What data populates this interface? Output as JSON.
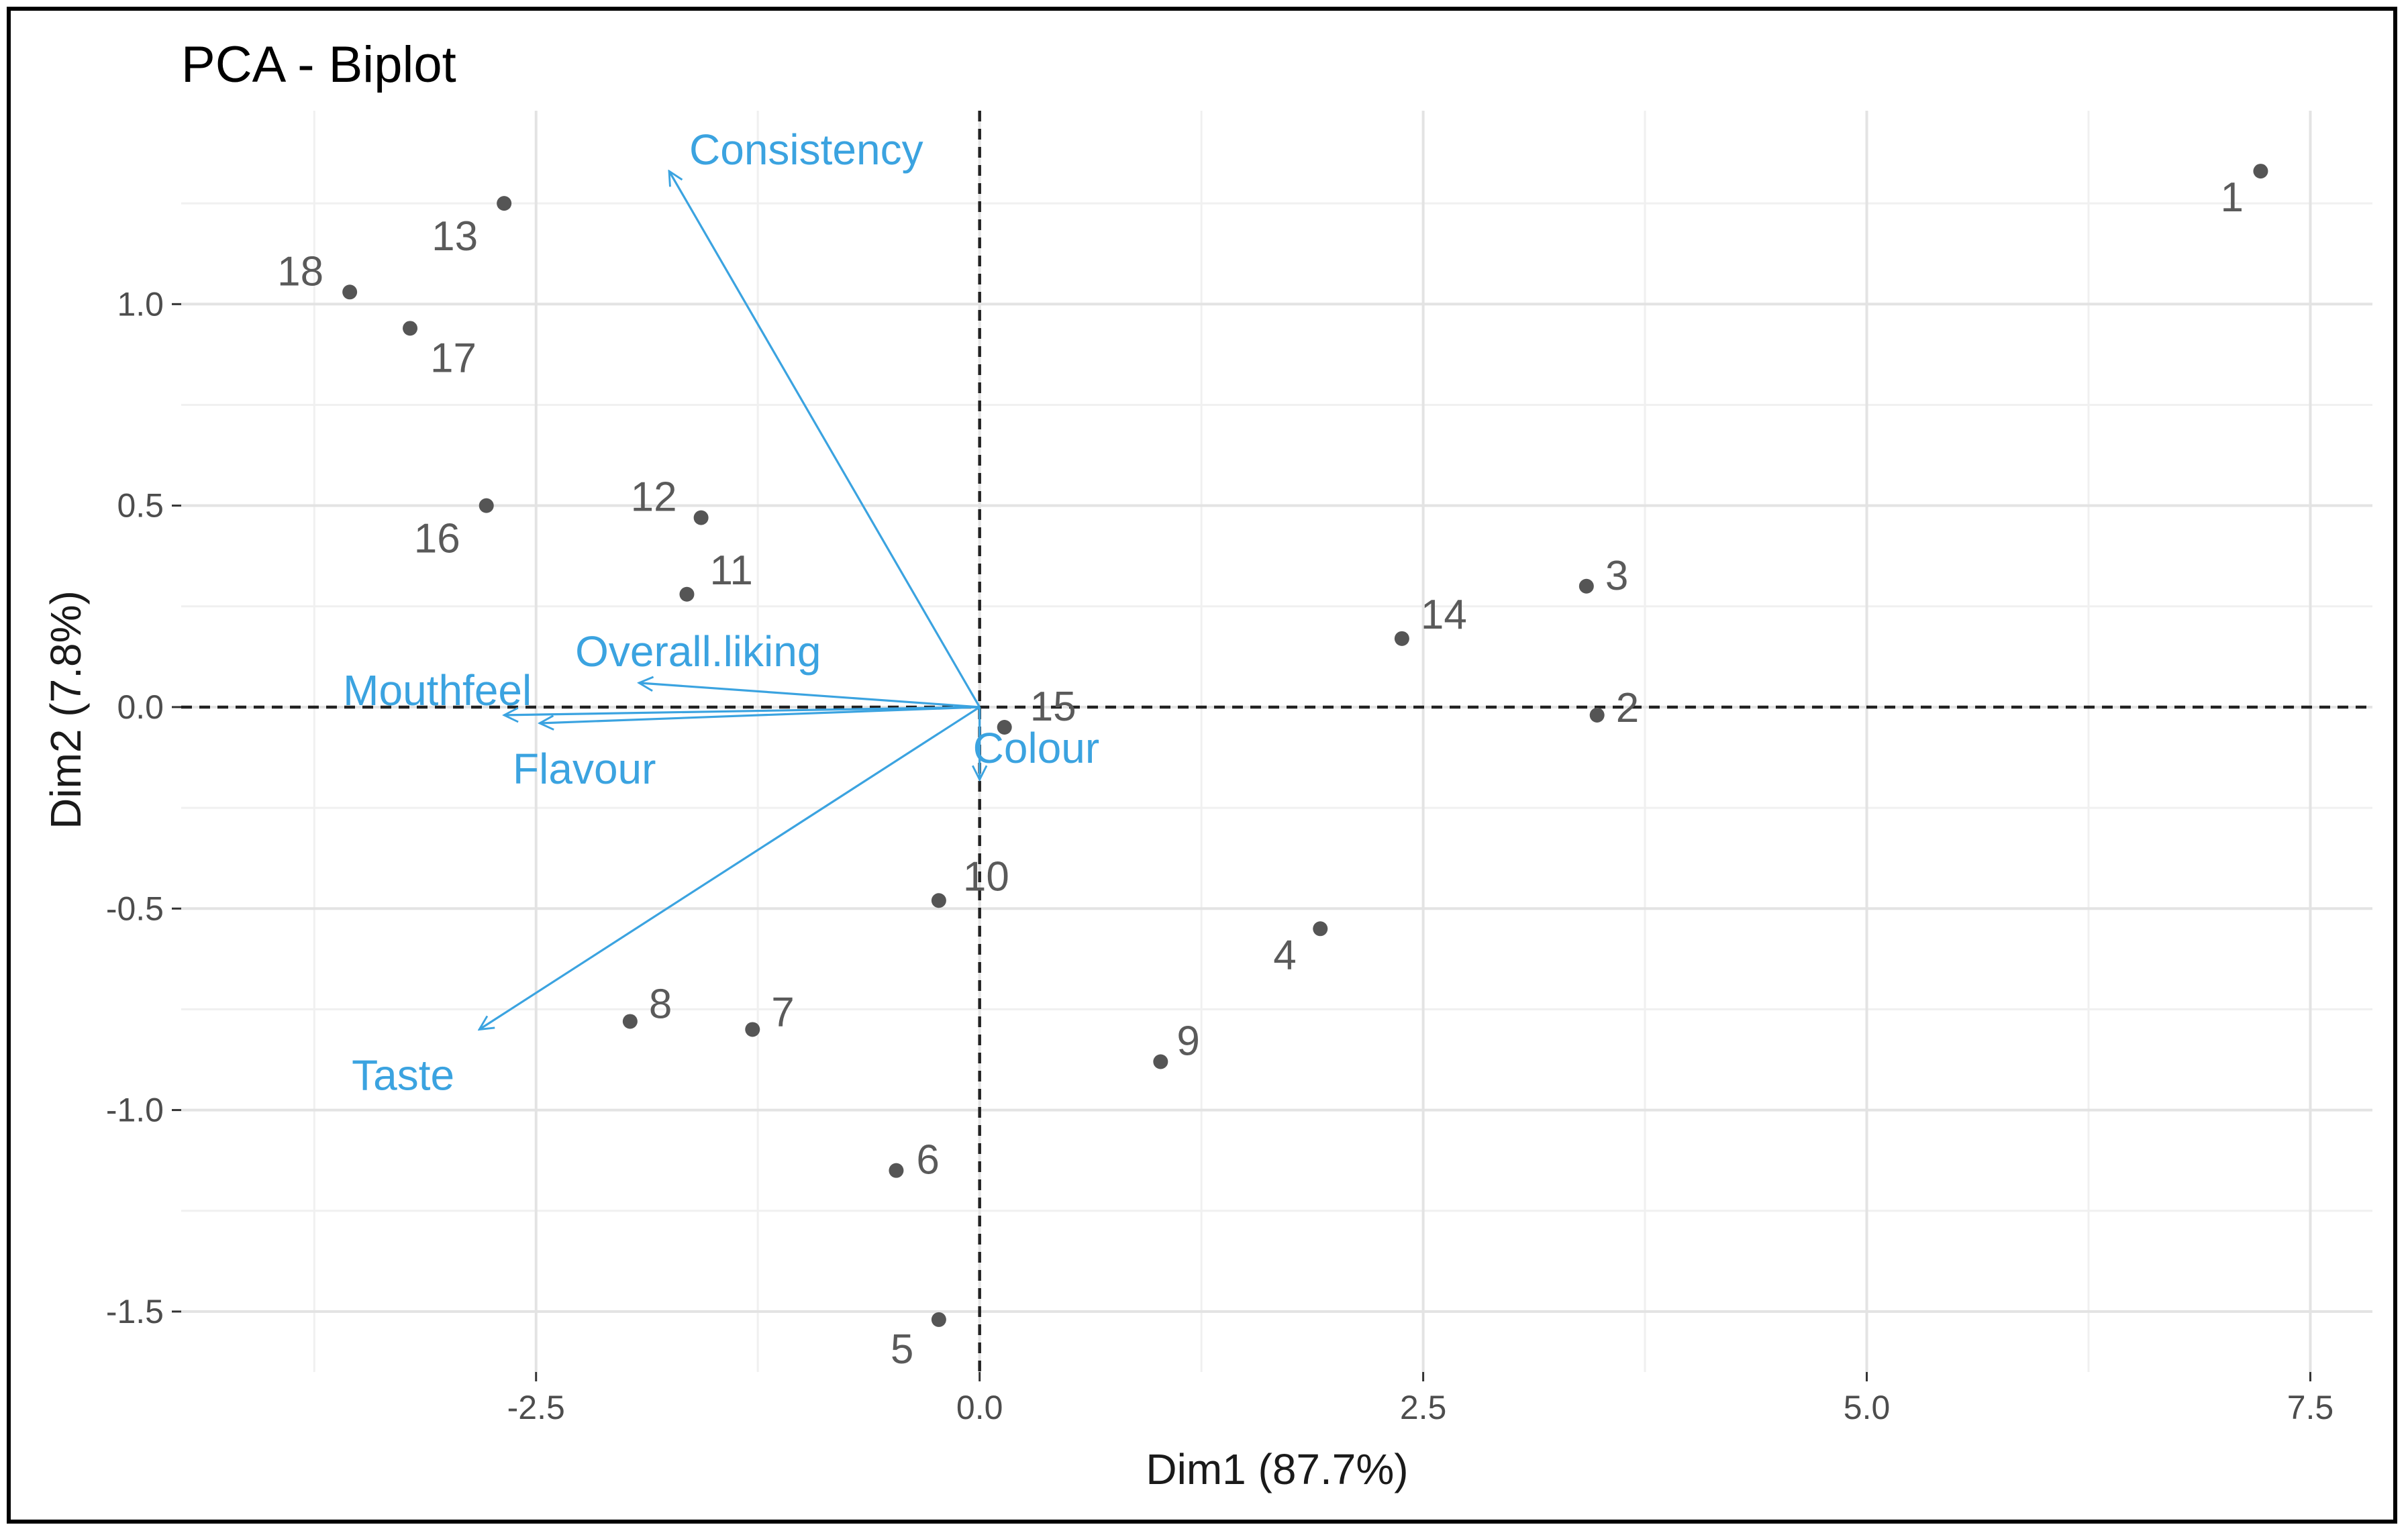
{
  "chart_data": {
    "type": "scatter",
    "subtype": "pca-biplot",
    "title": "PCA - Biplot",
    "xlabel": "Dim1 (87.7%)",
    "ylabel": "Dim2 (7.8%)",
    "xlim": [
      -4.5,
      7.85
    ],
    "ylim": [
      -1.65,
      1.48
    ],
    "xticks": [
      -2.5,
      0.0,
      2.5,
      5.0,
      7.5
    ],
    "xtick_labels": [
      "-2.5",
      "0.0",
      "2.5",
      "5.0",
      "7.5"
    ],
    "yticks": [
      -1.5,
      -1.0,
      -0.5,
      0.0,
      0.5,
      1.0
    ],
    "ytick_labels": [
      "-1.5",
      "-1.0",
      "-0.5",
      "0.0",
      "0.5",
      "1.0"
    ],
    "grid": true,
    "reference_lines": {
      "x": 0,
      "y": 0,
      "style": "dashed"
    },
    "colors": {
      "points": "#555555",
      "point_labels": "#5a5a5a",
      "arrows": "#3ba3e0",
      "grid_major": "#e3e3e3",
      "grid_minor": "#f0f0f0"
    },
    "points": [
      {
        "label": "1",
        "x": 7.22,
        "y": 1.33
      },
      {
        "label": "2",
        "x": 3.48,
        "y": -0.02
      },
      {
        "label": "3",
        "x": 3.42,
        "y": 0.3
      },
      {
        "label": "4",
        "x": 1.92,
        "y": -0.55
      },
      {
        "label": "5",
        "x": -0.23,
        "y": -1.52
      },
      {
        "label": "6",
        "x": -0.47,
        "y": -1.15
      },
      {
        "label": "7",
        "x": -1.28,
        "y": -0.8
      },
      {
        "label": "8",
        "x": -1.97,
        "y": -0.78
      },
      {
        "label": "9",
        "x": 1.02,
        "y": -0.88
      },
      {
        "label": "10",
        "x": -0.23,
        "y": -0.48
      },
      {
        "label": "11",
        "x": -1.65,
        "y": 0.28
      },
      {
        "label": "12",
        "x": -1.57,
        "y": 0.47
      },
      {
        "label": "13",
        "x": -2.68,
        "y": 1.25
      },
      {
        "label": "14",
        "x": 2.38,
        "y": 0.17
      },
      {
        "label": "15",
        "x": 0.14,
        "y": -0.05
      },
      {
        "label": "16",
        "x": -2.78,
        "y": 0.5
      },
      {
        "label": "17",
        "x": -3.21,
        "y": 0.94
      },
      {
        "label": "18",
        "x": -3.55,
        "y": 1.03
      }
    ],
    "variables": [
      {
        "name": "Consistency",
        "x": -1.75,
        "y": 1.33
      },
      {
        "name": "Overall.liking",
        "x": -1.92,
        "y": 0.06
      },
      {
        "name": "Mouthfeel",
        "x": -2.68,
        "y": -0.02
      },
      {
        "name": "Flavour",
        "x": -2.48,
        "y": -0.04
      },
      {
        "name": "Taste",
        "x": -2.82,
        "y": -0.8
      },
      {
        "name": "Colour",
        "x": 0.0,
        "y": -0.18
      }
    ]
  }
}
